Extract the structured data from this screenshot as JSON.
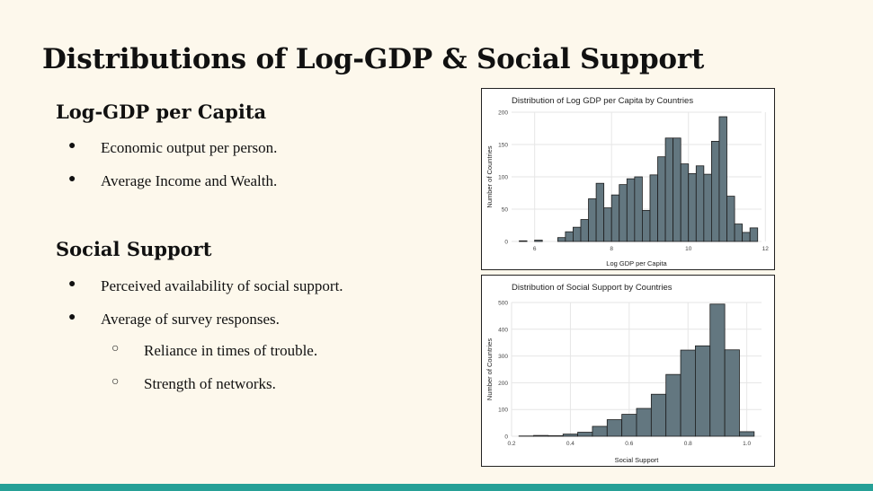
{
  "slide": {
    "title": "Distributions of Log-GDP & Social Support",
    "footer_color": "#26a096"
  },
  "sections": [
    {
      "heading": "Log-GDP per Capita",
      "bullets": [
        {
          "level": 1,
          "text": "Economic output per person."
        },
        {
          "level": 1,
          "text": "Average Income and Wealth."
        }
      ]
    },
    {
      "heading": "Social Support",
      "bullets": [
        {
          "level": 1,
          "text": "Perceived availability of social support."
        },
        {
          "level": 1,
          "text": "Average of survey responses."
        },
        {
          "level": 2,
          "text": "Reliance in times of trouble."
        },
        {
          "level": 2,
          "text": "Strength of networks."
        }
      ]
    }
  ],
  "chart_data": [
    {
      "type": "bar",
      "title": "Distribution of Log GDP per Capita by Countries",
      "xlabel": "Log GDP per Capita",
      "ylabel": "Number of Countries",
      "xlim": [
        5.4,
        11.9
      ],
      "ylim": [
        0,
        200
      ],
      "xticks": [
        6,
        8,
        10,
        12
      ],
      "yticks": [
        0,
        50,
        100,
        150,
        200
      ],
      "grid": true,
      "bar_color": "#637780",
      "bin_width": 0.2,
      "bins": [
        {
          "x0": 5.6,
          "count": 1
        },
        {
          "x0": 5.8,
          "count": 0
        },
        {
          "x0": 6.0,
          "count": 2
        },
        {
          "x0": 6.2,
          "count": 0
        },
        {
          "x0": 6.4,
          "count": 0
        },
        {
          "x0": 6.6,
          "count": 6
        },
        {
          "x0": 6.8,
          "count": 15
        },
        {
          "x0": 7.0,
          "count": 22
        },
        {
          "x0": 7.2,
          "count": 34
        },
        {
          "x0": 7.4,
          "count": 66
        },
        {
          "x0": 7.6,
          "count": 90
        },
        {
          "x0": 7.8,
          "count": 52
        },
        {
          "x0": 8.0,
          "count": 72
        },
        {
          "x0": 8.2,
          "count": 88
        },
        {
          "x0": 8.4,
          "count": 97
        },
        {
          "x0": 8.6,
          "count": 100
        },
        {
          "x0": 8.8,
          "count": 48
        },
        {
          "x0": 9.0,
          "count": 103
        },
        {
          "x0": 9.2,
          "count": 131
        },
        {
          "x0": 9.4,
          "count": 160
        },
        {
          "x0": 9.6,
          "count": 160
        },
        {
          "x0": 9.8,
          "count": 120
        },
        {
          "x0": 10.0,
          "count": 105
        },
        {
          "x0": 10.2,
          "count": 117
        },
        {
          "x0": 10.4,
          "count": 104
        },
        {
          "x0": 10.6,
          "count": 155
        },
        {
          "x0": 10.8,
          "count": 193
        },
        {
          "x0": 11.0,
          "count": 70
        },
        {
          "x0": 11.2,
          "count": 27
        },
        {
          "x0": 11.4,
          "count": 14
        },
        {
          "x0": 11.6,
          "count": 21
        }
      ]
    },
    {
      "type": "bar",
      "title": "Distribution of Social Support by Countries",
      "xlabel": "Social Support",
      "ylabel": "Number of Countries",
      "xlim": [
        0.2,
        1.05
      ],
      "ylim": [
        0,
        500
      ],
      "xticks": [
        0.2,
        0.4,
        0.6,
        0.8,
        1.0
      ],
      "yticks": [
        0,
        100,
        200,
        300,
        400,
        500
      ],
      "grid": true,
      "bar_color": "#637780",
      "bin_width": 0.05,
      "bins": [
        {
          "x0": 0.225,
          "count": 1
        },
        {
          "x0": 0.275,
          "count": 3
        },
        {
          "x0": 0.325,
          "count": 2
        },
        {
          "x0": 0.375,
          "count": 8
        },
        {
          "x0": 0.425,
          "count": 15
        },
        {
          "x0": 0.475,
          "count": 37
        },
        {
          "x0": 0.525,
          "count": 62
        },
        {
          "x0": 0.575,
          "count": 82
        },
        {
          "x0": 0.625,
          "count": 104
        },
        {
          "x0": 0.675,
          "count": 157
        },
        {
          "x0": 0.725,
          "count": 231
        },
        {
          "x0": 0.775,
          "count": 322
        },
        {
          "x0": 0.825,
          "count": 338
        },
        {
          "x0": 0.875,
          "count": 494
        },
        {
          "x0": 0.925,
          "count": 323
        },
        {
          "x0": 0.975,
          "count": 17
        }
      ]
    }
  ]
}
